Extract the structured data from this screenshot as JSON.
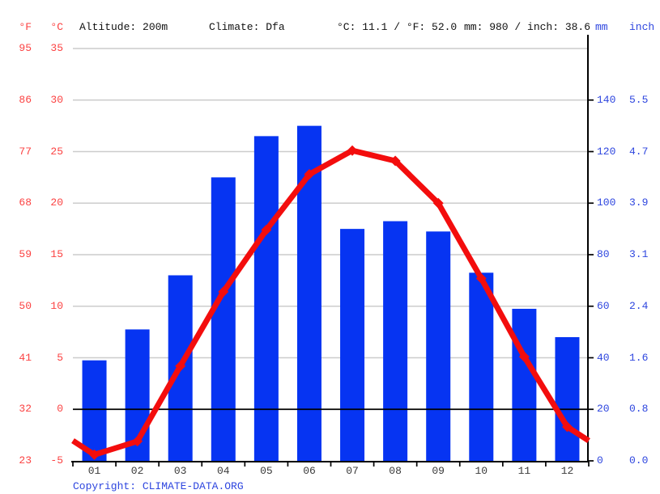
{
  "header": {
    "fahrenheit_label": "°F",
    "celsius_label": "°C",
    "altitude": "Altitude: 200m",
    "climate": "Climate: Dfa",
    "temperature_summary": "°C: 11.1 / °F: 52.0",
    "precipitation_summary": "mm: 980 / inch: 38.6",
    "mm_label": "mm",
    "inch_label": "inch"
  },
  "footer": {
    "copyright_prefix": "Copyright: ",
    "copyright_link": "CLIMATE-DATA.ORG"
  },
  "colors": {
    "bar_blue": "#0634f2",
    "line_red": "#f30d0d",
    "red_text": "#fb4242",
    "blue_text": "#2e46df",
    "grid_gray": "#cccccc",
    "axis_black": "#000000",
    "month_text": "#3a3a3a"
  },
  "chart_data": {
    "type": "bar+line climograph",
    "categories": [
      "01",
      "02",
      "03",
      "04",
      "05",
      "06",
      "07",
      "08",
      "09",
      "10",
      "11",
      "12"
    ],
    "series": [
      {
        "name": "precipitation",
        "type": "bar",
        "unit": "mm",
        "axis": "right",
        "values": [
          39,
          51,
          72,
          110,
          126,
          130,
          90,
          93,
          89,
          73,
          59,
          48
        ]
      },
      {
        "name": "temperature",
        "type": "line",
        "unit": "°C",
        "axis": "left",
        "values": [
          -4.4,
          -3.1,
          4.2,
          11.4,
          17.4,
          22.8,
          25.1,
          24.1,
          20.0,
          12.7,
          5.1,
          -1.7
        ]
      }
    ],
    "left_axis": {
      "fahrenheit_ticks": [
        "95",
        "86",
        "77",
        "68",
        "59",
        "50",
        "41",
        "32",
        "23"
      ],
      "celsius_ticks": [
        "35",
        "30",
        "25",
        "20",
        "15",
        "10",
        "5",
        "0",
        "-5"
      ],
      "celsius_range": [
        -5,
        35
      ]
    },
    "right_axis": {
      "mm_ticks": [
        "140",
        "120",
        "100",
        "80",
        "60",
        "40",
        "20",
        "0"
      ],
      "inch_ticks": [
        "5.5",
        "4.7",
        "3.9",
        "3.1",
        "2.4",
        "1.6",
        "0.8",
        "0.0"
      ],
      "mm_range": [
        0,
        160
      ]
    },
    "grid": true,
    "zero_line_celsius": 0
  }
}
